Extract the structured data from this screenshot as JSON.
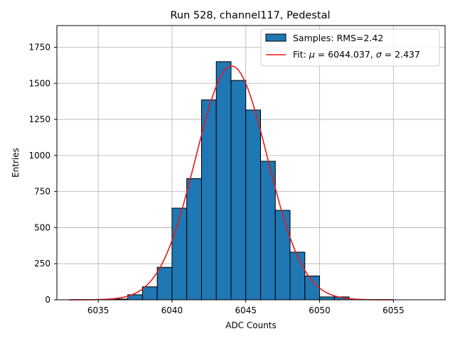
{
  "chart_data": {
    "type": "bar",
    "title": "Run 528, channel117, Pedestal",
    "xlabel": "ADC Counts",
    "ylabel": "Entries",
    "xlim": [
      6032.2,
      6058.5
    ],
    "ylim": [
      0,
      1900
    ],
    "grid": true,
    "legend_position": "top-right",
    "x_ticks": [
      6035,
      6040,
      6045,
      6050,
      6055
    ],
    "y_ticks": [
      0,
      250,
      500,
      750,
      1000,
      1250,
      1500,
      1750
    ],
    "histogram": {
      "name": "Samples: RMS=2.42",
      "color": "#1f77b4",
      "edgecolor": "#000000",
      "bin_edges": [
        6036,
        6037,
        6038,
        6039,
        6040,
        6041,
        6042,
        6043,
        6044,
        6045,
        6046,
        6047,
        6048,
        6049,
        6050,
        6051,
        6052
      ],
      "counts": [
        5,
        35,
        90,
        225,
        635,
        840,
        1385,
        1650,
        1520,
        1315,
        960,
        620,
        330,
        165,
        20,
        20
      ]
    },
    "fit": {
      "name_prefix": "Fit: ",
      "mu_symbol": "μ",
      "mu_text": " = 6044.037, ",
      "sigma_symbol": "σ",
      "sigma_text": " = 2.437",
      "color": "#e41a1c",
      "mu": 6044.037,
      "sigma": 2.437,
      "amplitude": 1620,
      "x_range": [
        6033,
        6055
      ]
    }
  }
}
